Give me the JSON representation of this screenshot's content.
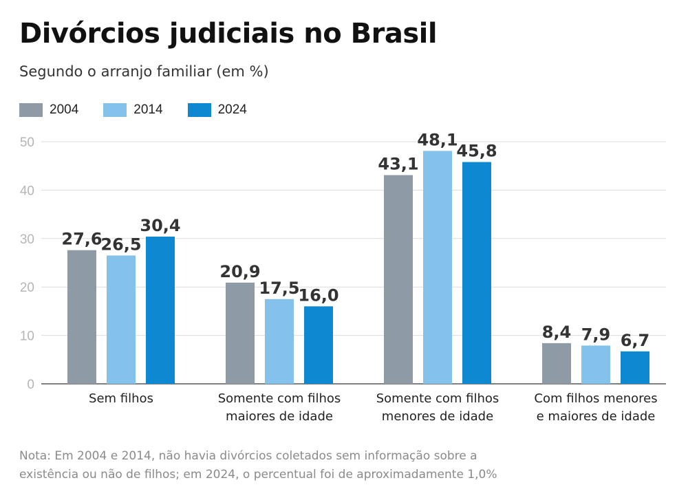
{
  "header": {
    "title": "Divórcios judiciais no Brasil",
    "subtitle": "Segundo o arranjo familiar (em %)"
  },
  "legend": [
    {
      "label": "2004",
      "color": "#8e9ba7"
    },
    {
      "label": "2014",
      "color": "#85c2eb"
    },
    {
      "label": "2024",
      "color": "#0f88d2"
    }
  ],
  "chart_data": {
    "type": "bar",
    "title": "Divórcios judiciais no Brasil",
    "subtitle": "Segundo o arranjo familiar (em %)",
    "xlabel": "",
    "ylabel": "",
    "ylim": [
      0,
      50
    ],
    "yticks": [
      "0",
      "10",
      "20",
      "30",
      "40",
      "50"
    ],
    "grid": true,
    "legend_position": "top-left",
    "categories": [
      [
        "Sem filhos"
      ],
      [
        "Somente com filhos",
        "maiores de idade"
      ],
      [
        "Somente com filhos",
        "menores de idade"
      ],
      [
        "Com filhos menores",
        "e maiores de idade"
      ]
    ],
    "series": [
      {
        "name": "2004",
        "color": "#8e9ba7",
        "values": [
          27.6,
          20.9,
          43.1,
          8.4
        ],
        "labels": [
          "27,6",
          "20,9",
          "43,1",
          "8,4"
        ]
      },
      {
        "name": "2014",
        "color": "#85c2eb",
        "values": [
          26.5,
          17.5,
          48.1,
          7.9
        ],
        "labels": [
          "26,5",
          "17,5",
          "48,1",
          "7,9"
        ]
      },
      {
        "name": "2024",
        "color": "#0f88d2",
        "values": [
          30.4,
          16.0,
          45.8,
          6.7
        ],
        "labels": [
          "30,4",
          "16,0",
          "45,8",
          "6,7"
        ]
      }
    ]
  },
  "note": {
    "line1": "Nota: Em 2004 e 2014, não havia divórcios coletados sem informação sobre a",
    "line2": "existência ou não de filhos; em 2024, o percentual foi de aproximadamente 1,0%"
  }
}
